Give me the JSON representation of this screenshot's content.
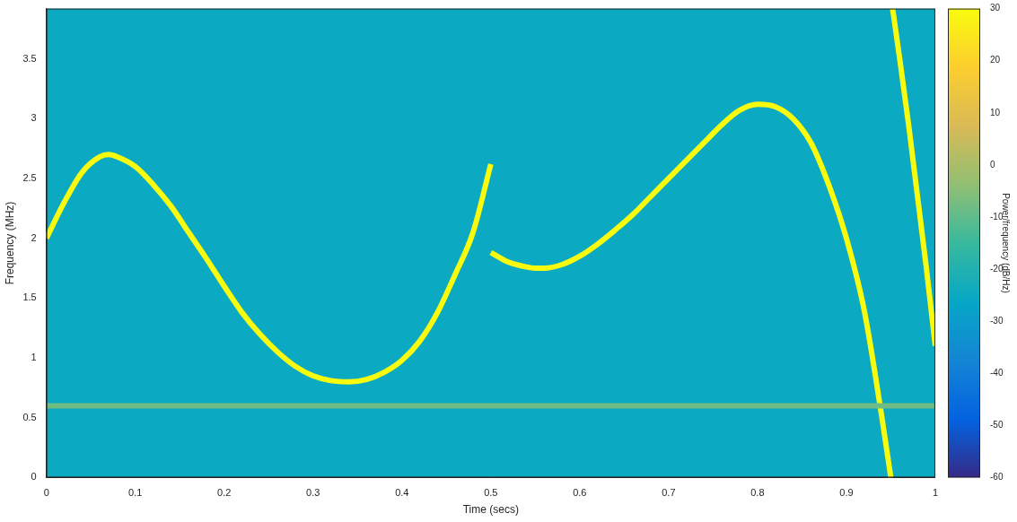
{
  "chart_data": {
    "type": "line",
    "x_label": "Time (secs)",
    "y_label": "Frequency (MHz)",
    "xlim": [
      0,
      1
    ],
    "xticks": [
      0,
      0.1,
      0.2,
      0.3,
      0.4,
      0.5,
      0.6,
      0.7,
      0.8,
      0.9,
      1
    ],
    "ylim": [
      0,
      3.92
    ],
    "yticks": [
      0,
      0.5,
      1,
      1.5,
      2,
      2.5,
      3,
      3.5
    ],
    "grid": false,
    "background_power": -25,
    "series": [
      {
        "power": -8,
        "x": [
          0,
          1
        ],
        "values": [
          0.6,
          0.6
        ]
      },
      {
        "power": 30,
        "x": [
          0,
          0.02,
          0.04,
          0.06,
          0.07,
          0.08,
          0.1,
          0.12,
          0.14,
          0.16,
          0.18,
          0.2,
          0.22,
          0.24,
          0.26,
          0.28,
          0.3,
          0.32,
          0.34,
          0.36,
          0.38,
          0.4,
          0.42,
          0.44,
          0.46,
          0.48,
          0.5
        ],
        "values": [
          2.0,
          2.3,
          2.55,
          2.68,
          2.7,
          2.68,
          2.6,
          2.45,
          2.27,
          2.05,
          1.83,
          1.6,
          1.38,
          1.2,
          1.05,
          0.93,
          0.85,
          0.81,
          0.8,
          0.82,
          0.88,
          0.98,
          1.14,
          1.38,
          1.7,
          2.05,
          2.62
        ]
      },
      {
        "power": 30,
        "x": [
          0.5,
          0.52,
          0.54,
          0.55,
          0.56,
          0.58,
          0.6,
          0.62,
          0.64,
          0.66,
          0.68,
          0.7,
          0.72,
          0.74,
          0.76,
          0.78,
          0.8,
          0.82,
          0.84,
          0.86,
          0.88,
          0.9,
          0.92,
          0.94,
          0.95
        ],
        "values": [
          1.88,
          1.8,
          1.76,
          1.75,
          1.75,
          1.78,
          1.85,
          1.95,
          2.07,
          2.2,
          2.35,
          2.5,
          2.65,
          2.8,
          2.95,
          3.07,
          3.12,
          3.1,
          3.0,
          2.8,
          2.45,
          2.0,
          1.4,
          0.5,
          0.0
        ]
      },
      {
        "power": 30,
        "x": [
          0.952,
          0.96,
          0.97,
          0.98,
          0.99,
          1.0
        ],
        "values": [
          3.92,
          3.5,
          2.95,
          2.35,
          1.75,
          1.1
        ]
      }
    ],
    "colorbar": {
      "range": [
        -60,
        30
      ],
      "ticks": [
        -60,
        -50,
        -40,
        -30,
        -20,
        -10,
        0,
        10,
        20,
        30
      ],
      "label": "Power/frequency (dB/Hz)"
    }
  }
}
